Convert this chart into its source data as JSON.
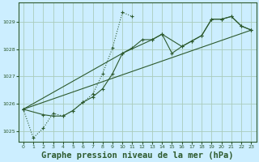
{
  "background_color": "#cceeff",
  "grid_color": "#aaccbb",
  "line_color": "#2d5a2d",
  "marker_color": "#2d5a2d",
  "title": "Graphe pression niveau de la mer (hPa)",
  "title_fontsize": 7.5,
  "tick_color": "#2d5a2d",
  "ylabel_ticks": [
    1025,
    1026,
    1027,
    1028,
    1029
  ],
  "xlim": [
    -0.5,
    23.5
  ],
  "ylim": [
    1024.6,
    1029.7
  ],
  "series": [
    {
      "linestyle": "dotted",
      "x": [
        0,
        1,
        2,
        3,
        4,
        5,
        6,
        7,
        8,
        9,
        10,
        11
      ],
      "y": [
        1025.8,
        1024.75,
        1025.1,
        1025.65,
        1025.55,
        1025.75,
        1026.05,
        1026.35,
        1027.1,
        1028.05,
        1029.35,
        1029.2
      ]
    },
    {
      "linestyle": "solid",
      "x": [
        0,
        2,
        3,
        4,
        5,
        6,
        7,
        8,
        9,
        10,
        11,
        12,
        13,
        14,
        15,
        16,
        17,
        18,
        19,
        20,
        21,
        22,
        23
      ],
      "y": [
        1025.8,
        1025.6,
        1025.55,
        1025.55,
        1025.75,
        1026.05,
        1026.25,
        1026.55,
        1027.1,
        1027.85,
        1028.05,
        1028.35,
        1028.35,
        1028.55,
        1027.85,
        1028.1,
        1028.3,
        1028.5,
        1029.1,
        1029.1,
        1029.2,
        1028.85,
        1028.7
      ]
    },
    {
      "linestyle": "solid",
      "x": [
        0,
        23
      ],
      "y": [
        1025.8,
        1028.7
      ]
    },
    {
      "linestyle": "solid",
      "x": [
        0,
        10,
        13,
        14,
        16,
        17,
        18,
        19,
        20,
        21,
        22,
        23
      ],
      "y": [
        1025.8,
        1027.85,
        1028.35,
        1028.55,
        1028.1,
        1028.3,
        1028.5,
        1029.1,
        1029.1,
        1029.2,
        1028.85,
        1028.7
      ]
    }
  ]
}
